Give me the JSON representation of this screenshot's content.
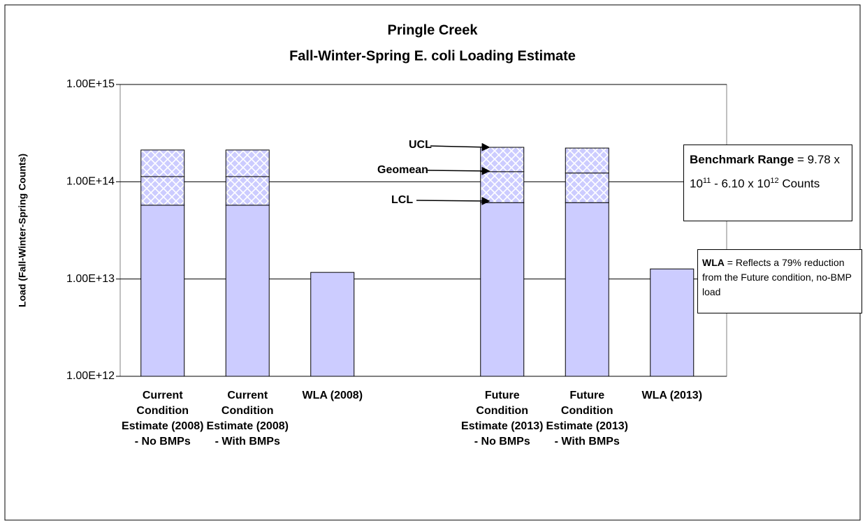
{
  "chart_data": {
    "type": "bar",
    "title": [
      "Pringle Creek",
      "Fall-Winter-Spring E. coli Loading Estimate"
    ],
    "y_label": "Load (Fall-Winter-Spring Counts)",
    "categories": [
      "Current Condition Estimate (2008) - No BMPs",
      "Current Condition Estimate (2008) - With BMPs",
      "WLA (2008)",
      null,
      "Future Condition Estimate (2013) - No BMPs",
      "Future Condition Estimate (2013) - With BMPs",
      "WLA (2013)"
    ],
    "series": [
      {
        "name": "LCL",
        "color": "#ccccff",
        "hatch": false,
        "values": [
          57400000000000.0,
          57400000000000.0,
          null,
          null,
          61000000000000.0,
          61000000000000.0,
          null
        ]
      },
      {
        "name": "Geomean",
        "color": "#ccccff",
        "hatch": true,
        "values": [
          113000000000000.0,
          113000000000000.0,
          null,
          null,
          127000000000000.0,
          123000000000000.0,
          null
        ]
      },
      {
        "name": "UCL",
        "color": "#ccccff",
        "hatch": true,
        "values": [
          212000000000000.0,
          212000000000000.0,
          null,
          null,
          226000000000000.0,
          222000000000000.0,
          null
        ]
      },
      {
        "name": "WLA",
        "color": "#ccccff",
        "hatch": false,
        "values": [
          null,
          null,
          11700000000000.0,
          null,
          null,
          null,
          12700000000000.0
        ]
      }
    ],
    "log_y": true,
    "ylim": [
      1000000000000.0,
      1000000000000000.0
    ],
    "yticks": [
      {
        "value": 1000000000000.0,
        "label": "1.00E+12"
      },
      {
        "value": 10000000000000.0,
        "label": "1.00E+13"
      },
      {
        "value": 100000000000000.0,
        "label": "1.00E+14"
      },
      {
        "value": 1000000000000000.0,
        "label": "1.00E+15"
      }
    ],
    "grid": true,
    "benchmark": {
      "label": "Benchmark Range",
      "parts": [
        " = 9.78 x 10",
        "11",
        " - 6.10 x 10",
        "12",
        " Counts"
      ]
    },
    "wla_note": " = Reflects a 79% reduction from the Future condition, no-BMP load"
  }
}
